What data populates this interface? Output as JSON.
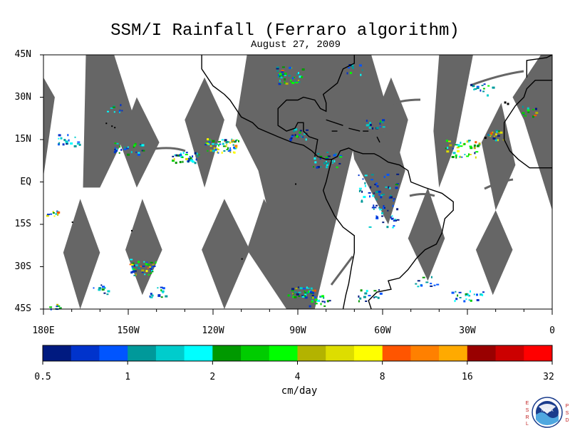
{
  "title": "SSM/I Rainfall (Ferraro algorithm)",
  "subtitle": "August 27, 2009",
  "map": {
    "lon_range": [
      -180,
      0
    ],
    "lat_range": [
      -45,
      45
    ],
    "lat_ticks": [
      {
        "value": 45,
        "label": "45N"
      },
      {
        "value": 30,
        "label": "30N"
      },
      {
        "value": 15,
        "label": "15N"
      },
      {
        "value": 0,
        "label": "EQ"
      },
      {
        "value": -15,
        "label": "15S"
      },
      {
        "value": -30,
        "label": "30S"
      },
      {
        "value": -45,
        "label": "45S"
      }
    ],
    "lon_ticks": [
      {
        "value": -180,
        "label": "180E"
      },
      {
        "value": -150,
        "label": "150W"
      },
      {
        "value": -120,
        "label": "120W"
      },
      {
        "value": -90,
        "label": "90W"
      },
      {
        "value": -60,
        "label": "60W"
      },
      {
        "value": -30,
        "label": "30W"
      },
      {
        "value": 0,
        "label": "0"
      }
    ],
    "no_data_color": "#666666",
    "land_outline_color": "#000000"
  },
  "colorbar": {
    "units": "cm/day",
    "tick_labels": [
      "0.5",
      "1",
      "2",
      "4",
      "8",
      "16",
      "32"
    ],
    "colors": [
      "#001a80",
      "#0033cc",
      "#0055ff",
      "#00999a",
      "#00cccc",
      "#00ffff",
      "#009900",
      "#00cc00",
      "#00ff00",
      "#b3b300",
      "#dddd00",
      "#ffff00",
      "#ff5500",
      "#ff8000",
      "#ffaa00",
      "#990000",
      "#cc0000",
      "#ff0000"
    ]
  },
  "logo": {
    "text": "NOAA",
    "left_letters": [
      "E",
      "S",
      "R",
      "L"
    ],
    "right_letters": [
      "P",
      "S",
      "D"
    ]
  }
}
